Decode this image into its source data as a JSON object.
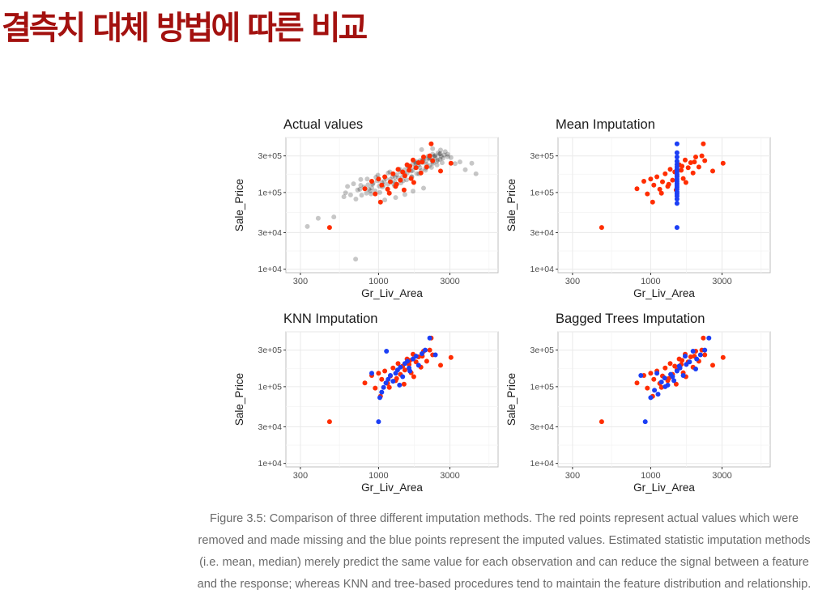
{
  "slide": {
    "title": "결측치 대체 방법에 따른 비교",
    "caption": "Figure 3.5: Comparison of three different imputation methods. The red points represent actual values which were removed and made missing and the blue points represent the imputed values. Estimated statistic imputation methods (i.e. mean, median) merely predict the same value for each observation and can reduce the signal between a feature and the response; whereas KNN and tree-based procedures tend to maintain the feature distribution and relationship."
  },
  "colors": {
    "title": "#a3110f",
    "actual": "#ff2d00",
    "imputed": "#1c3ff5",
    "other": "#000000",
    "grid": "#ebebeb",
    "panel_border": "#bfbfbf"
  },
  "chart_data": [
    {
      "type": "scatter",
      "title": "Actual values",
      "xlabel": "Gr_Liv_Area",
      "ylabel": "Sale_Price",
      "x_scale": "log",
      "y_scale": "log",
      "xlim": [
        240,
        6300
      ],
      "ylim": [
        9000,
        520000
      ],
      "xticks": [
        300,
        1000,
        3000
      ],
      "xtick_labels": [
        "300",
        "1000",
        "3000"
      ],
      "yticks": [
        10000,
        30000,
        100000,
        300000
      ],
      "ytick_labels": [
        "1e+04",
        "3e+04",
        "1e+05",
        "3e+05"
      ],
      "grid": true,
      "legend": "none",
      "series": [
        {
          "color": "#000000",
          "opacity": 0.22,
          "x": [
            334,
            395,
            502,
            702,
            4480,
            586,
            602,
            650,
            705,
            725,
            750,
            770,
            800,
            830,
            850,
            880,
            900,
            920,
            950,
            980,
            1010,
            1050,
            1080,
            1120,
            1160,
            1200,
            1240,
            1280,
            1320,
            1360,
            1400,
            1450,
            1500,
            1550,
            1600,
            1650,
            1700,
            1750,
            1800,
            1850,
            1900,
            1960,
            2020,
            2080,
            2150,
            2220,
            2300,
            2400,
            2500,
            2620,
            2750,
            2900,
            3050,
            3250,
            3500,
            3800,
            4200,
            620,
            680,
            760,
            840,
            910,
            990,
            1090,
            1190,
            1290,
            1390,
            1490,
            1590,
            1690,
            1790,
            1890,
            1990,
            2090,
            2190,
            2290,
            2390,
            2490,
            2590,
            2690,
            2790,
            2890,
            760,
            860,
            960,
            1060,
            1160,
            1260,
            1360,
            1460,
            1560,
            1660,
            1760,
            1860,
            1960,
            2060,
            2160,
            2260,
            2360,
            2460,
            2560,
            2660,
            890,
            1020,
            1150,
            1280,
            1410,
            1540,
            1670,
            1800,
            1930,
            2060,
            2190,
            2320,
            2450,
            2580,
            1940,
            2300,
            2600,
            1100,
            1300,
            1500,
            1700,
            2000
          ],
          "y": [
            36000,
            46000,
            48000,
            13500,
            175000,
            88000,
            99000,
            93000,
            82000,
            108000,
            110000,
            92000,
            118000,
            98000,
            126000,
            105000,
            115000,
            132000,
            105000,
            142000,
            121000,
            135000,
            125000,
            152000,
            129000,
            148000,
            162000,
            139000,
            170000,
            155000,
            185000,
            162000,
            198000,
            178000,
            212000,
            190000,
            238000,
            212000,
            252000,
            228000,
            262000,
            245000,
            285000,
            255000,
            298000,
            272000,
            315000,
            287000,
            328000,
            295000,
            308000,
            315000,
            285000,
            238000,
            250000,
            198000,
            240000,
            120000,
            130000,
            124000,
            150000,
            128000,
            168000,
            140000,
            185000,
            158000,
            200000,
            174000,
            222000,
            193000,
            241000,
            211000,
            265000,
            231000,
            283000,
            248000,
            303000,
            265000,
            321000,
            280000,
            341000,
            294000,
            148000,
            110000,
            158000,
            118000,
            180000,
            130000,
            200000,
            142000,
            222000,
            160000,
            245000,
            175000,
            262000,
            195000,
            280000,
            212000,
            298000,
            228000,
            316000,
            244000,
            96000,
            100000,
            112000,
            122000,
            133000,
            146000,
            160000,
            176000,
            192000,
            208000,
            224000,
            240000,
            256000,
            272000,
            362000,
            372000,
            358000,
            80000,
            86000,
            94000,
            104000,
            114000
          ]
        },
        {
          "color": "#ff2d00",
          "opacity": 1,
          "x": [
            470,
            810,
            900,
            950,
            1000,
            1050,
            1100,
            1150,
            1200,
            1250,
            1300,
            1350,
            1400,
            1450,
            1500,
            1550,
            1600,
            1650,
            1700,
            1780,
            1850,
            1920,
            2000,
            2100,
            2200,
            2300,
            2600,
            3050,
            1030,
            1180,
            1320,
            1480,
            1620,
            1720,
            1960,
            2250
          ],
          "y": [
            35000,
            112000,
            140000,
            96000,
            150000,
            125000,
            160000,
            110000,
            138000,
            175000,
            120000,
            200000,
            145000,
            185000,
            165000,
            230000,
            195000,
            152000,
            265000,
            210000,
            245000,
            180000,
            290000,
            215000,
            300000,
            260000,
            190000,
            240000,
            75000,
            98000,
            128000,
            108000,
            220000,
            135000,
            250000,
            430000
          ]
        }
      ]
    },
    {
      "type": "scatter",
      "title": "Mean Imputation",
      "xlabel": "Gr_Liv_Area",
      "ylabel": "Sale_Price",
      "x_scale": "log",
      "y_scale": "log",
      "xlim": [
        240,
        6300
      ],
      "ylim": [
        9000,
        520000
      ],
      "xticks": [
        300,
        1000,
        3000
      ],
      "xtick_labels": [
        "300",
        "1000",
        "3000"
      ],
      "yticks": [
        10000,
        30000,
        100000,
        300000
      ],
      "ytick_labels": [
        "1e+04",
        "3e+04",
        "1e+05",
        "3e+05"
      ],
      "grid": true,
      "legend": "none",
      "series": [
        {
          "color": "#ff2d00",
          "opacity": 1,
          "x": [
            470,
            810,
            900,
            950,
            1000,
            1050,
            1100,
            1150,
            1200,
            1250,
            1300,
            1350,
            1400,
            1450,
            1500,
            1550,
            1600,
            1650,
            1700,
            1780,
            1850,
            1920,
            2000,
            2100,
            2200,
            2300,
            2600,
            3050,
            1030,
            1180,
            1320,
            1480,
            1620,
            1720,
            1960,
            2250
          ],
          "y": [
            35000,
            112000,
            140000,
            96000,
            150000,
            125000,
            160000,
            110000,
            138000,
            175000,
            120000,
            200000,
            145000,
            185000,
            165000,
            230000,
            195000,
            152000,
            265000,
            210000,
            245000,
            180000,
            290000,
            215000,
            300000,
            260000,
            190000,
            240000,
            75000,
            98000,
            128000,
            108000,
            220000,
            135000,
            250000,
            430000
          ]
        },
        {
          "color": "#1c3ff5",
          "opacity": 1,
          "x": [
            1500,
            1500,
            1500,
            1500,
            1500,
            1500,
            1500,
            1500,
            1500,
            1500,
            1500,
            1500,
            1500,
            1500,
            1500,
            1500,
            1500,
            1500,
            1500,
            1500,
            1500,
            1500
          ],
          "y": [
            35000,
            72000,
            82000,
            90000,
            96000,
            102000,
            110000,
            118000,
            125000,
            132000,
            140000,
            150000,
            160000,
            172000,
            185000,
            200000,
            215000,
            232000,
            255000,
            290000,
            330000,
            430000
          ]
        }
      ]
    },
    {
      "type": "scatter",
      "title": "KNN Imputation",
      "xlabel": "Gr_Liv_Area",
      "ylabel": "Sale_Price",
      "x_scale": "log",
      "y_scale": "log",
      "xlim": [
        240,
        6300
      ],
      "ylim": [
        9000,
        520000
      ],
      "xticks": [
        300,
        1000,
        3000
      ],
      "xtick_labels": [
        "300",
        "1000",
        "3000"
      ],
      "yticks": [
        10000,
        30000,
        100000,
        300000
      ],
      "ytick_labels": [
        "1e+04",
        "3e+04",
        "1e+05",
        "3e+05"
      ],
      "grid": true,
      "legend": "none",
      "series": [
        {
          "color": "#ff2d00",
          "opacity": 1,
          "x": [
            470,
            810,
            900,
            950,
            1000,
            1050,
            1100,
            1150,
            1200,
            1250,
            1300,
            1350,
            1400,
            1450,
            1500,
            1550,
            1600,
            1650,
            1700,
            1780,
            1850,
            1920,
            2000,
            2100,
            2200,
            2300,
            2600,
            3050,
            1030,
            1180,
            1320,
            1480,
            1620,
            1720,
            1960,
            2250
          ],
          "y": [
            35000,
            112000,
            140000,
            96000,
            150000,
            125000,
            160000,
            110000,
            138000,
            175000,
            120000,
            200000,
            145000,
            185000,
            165000,
            230000,
            195000,
            152000,
            265000,
            210000,
            245000,
            180000,
            290000,
            215000,
            300000,
            260000,
            190000,
            240000,
            75000,
            98000,
            128000,
            108000,
            220000,
            135000,
            250000,
            430000
          ]
        },
        {
          "color": "#1c3ff5",
          "opacity": 1,
          "x": [
            1000,
            1020,
            1050,
            1080,
            1120,
            1160,
            1200,
            1250,
            1300,
            1340,
            1400,
            1450,
            1500,
            1560,
            1620,
            1700,
            1780,
            1850,
            1950,
            2050,
            2200,
            2400,
            900,
            1130,
            1380,
            1600
          ],
          "y": [
            35000,
            72000,
            85000,
            98000,
            112000,
            125000,
            140000,
            118000,
            150000,
            165000,
            180000,
            135000,
            200000,
            215000,
            160000,
            230000,
            250000,
            190000,
            270000,
            300000,
            430000,
            260000,
            150000,
            290000,
            105000,
            175000
          ]
        }
      ]
    },
    {
      "type": "scatter",
      "title": "Bagged Trees Imputation",
      "xlabel": "Gr_Liv_Area",
      "ylabel": "Sale_Price",
      "x_scale": "log",
      "y_scale": "log",
      "xlim": [
        240,
        6300
      ],
      "ylim": [
        9000,
        520000
      ],
      "xticks": [
        300,
        1000,
        3000
      ],
      "xtick_labels": [
        "300",
        "1000",
        "3000"
      ],
      "yticks": [
        10000,
        30000,
        100000,
        300000
      ],
      "ytick_labels": [
        "1e+04",
        "3e+04",
        "1e+05",
        "3e+05"
      ],
      "grid": true,
      "legend": "none",
      "series": [
        {
          "color": "#ff2d00",
          "opacity": 1,
          "x": [
            470,
            810,
            900,
            950,
            1000,
            1050,
            1100,
            1150,
            1200,
            1250,
            1300,
            1350,
            1400,
            1450,
            1500,
            1550,
            1600,
            1650,
            1700,
            1780,
            1850,
            1920,
            2000,
            2100,
            2200,
            2300,
            2600,
            3050,
            1030,
            1180,
            1320,
            1480,
            1620,
            1720,
            1960,
            2250
          ],
          "y": [
            35000,
            112000,
            140000,
            96000,
            150000,
            125000,
            160000,
            110000,
            138000,
            175000,
            120000,
            200000,
            145000,
            185000,
            165000,
            230000,
            195000,
            152000,
            265000,
            210000,
            245000,
            180000,
            290000,
            215000,
            300000,
            260000,
            190000,
            240000,
            75000,
            98000,
            128000,
            108000,
            220000,
            135000,
            250000,
            430000
          ]
        },
        {
          "color": "#1c3ff5",
          "opacity": 1,
          "x": [
            920,
            1000,
            1060,
            1120,
            1180,
            1240,
            1300,
            1360,
            1430,
            1500,
            1570,
            1650,
            1730,
            1820,
            1920,
            2030,
            2150,
            2300,
            2450,
            1100,
            1400,
            1700,
            860,
            1250,
            1550,
            2000
          ],
          "y": [
            35000,
            72000,
            90000,
            80000,
            115000,
            130000,
            105000,
            145000,
            120000,
            160000,
            175000,
            140000,
            195000,
            210000,
            290000,
            230000,
            260000,
            300000,
            430000,
            150000,
            135000,
            250000,
            140000,
            100000,
            185000,
            170000
          ]
        }
      ]
    }
  ]
}
